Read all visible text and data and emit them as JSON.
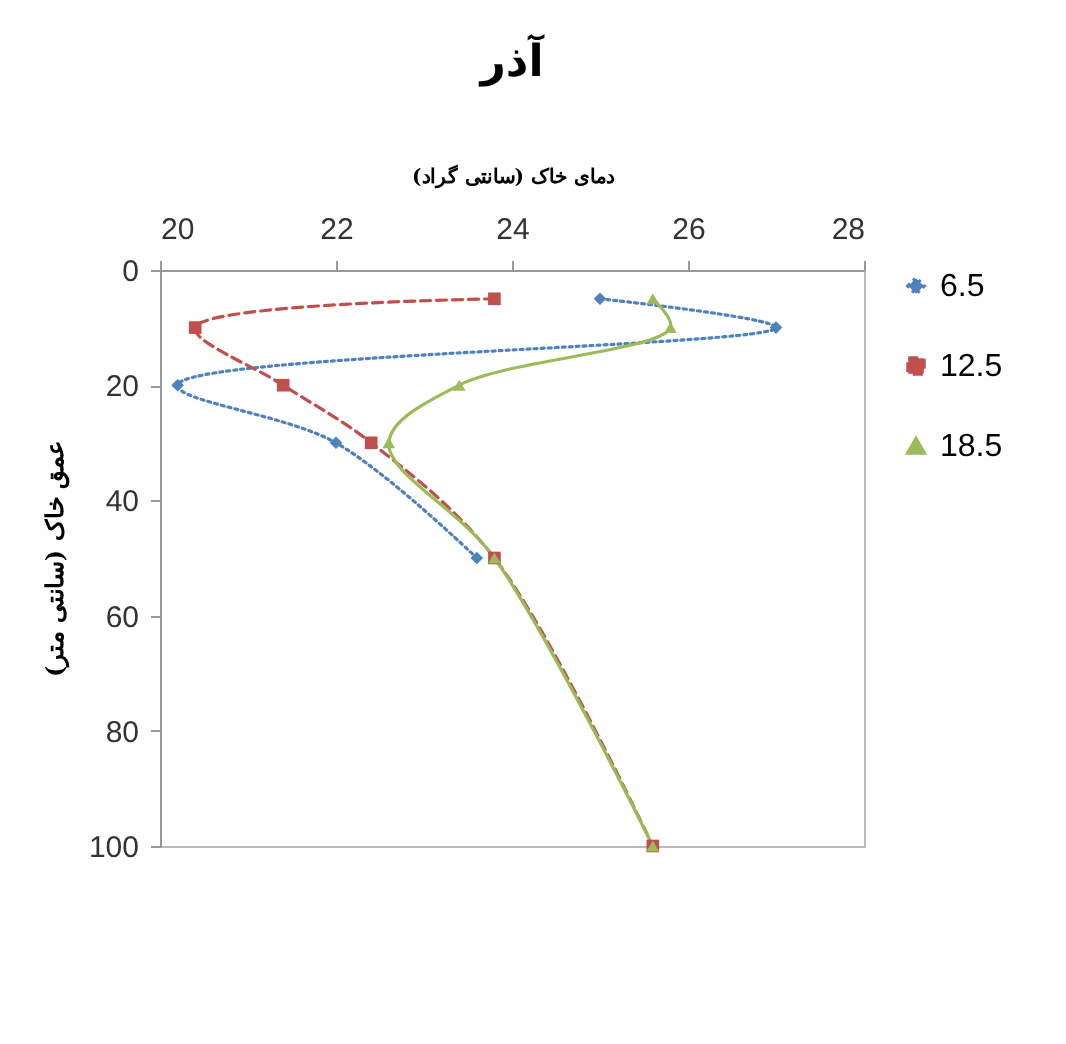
{
  "chart_data": {
    "type": "line",
    "title": "آذر",
    "xlabel": "دمای خاک (سانتی گراد)",
    "ylabel": "عمق خاک (سانتی متر)",
    "xlim": [
      20,
      28
    ],
    "xticks": [
      20,
      22,
      24,
      26,
      28
    ],
    "ylim": [
      100,
      0
    ],
    "yticks": [
      0,
      20,
      40,
      60,
      80,
      100
    ],
    "grid": false,
    "legend": "right",
    "series": [
      {
        "name": "6.5",
        "color": "#4f81bd",
        "marker": "diamond",
        "line_style": "dotted",
        "x": [
          25.0,
          27.0,
          20.2,
          22.0,
          23.6
        ],
        "values": [
          5,
          10,
          20,
          30,
          50
        ]
      },
      {
        "name": "12.5",
        "color": "#c0504d",
        "marker": "square",
        "line_style": "dashed",
        "x": [
          23.8,
          20.4,
          21.4,
          22.4,
          23.8,
          25.6
        ],
        "values": [
          5,
          10,
          20,
          30,
          50,
          100
        ]
      },
      {
        "name": "18.5",
        "color": "#9bbb59",
        "marker": "triangle",
        "line_style": "solid",
        "x": [
          25.6,
          25.8,
          23.4,
          22.6,
          23.8,
          25.6
        ],
        "values": [
          5,
          10,
          20,
          30,
          50,
          100
        ]
      }
    ]
  }
}
